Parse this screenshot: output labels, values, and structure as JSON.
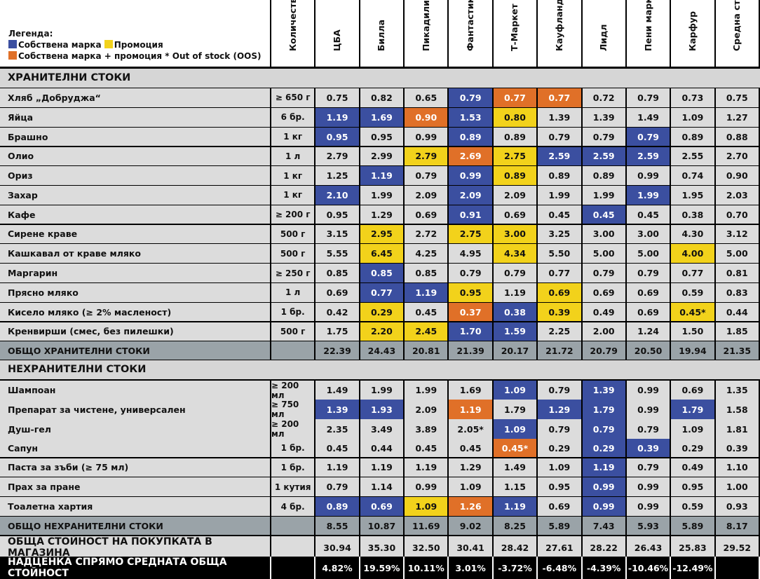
{
  "legend": {
    "title": "Легенда:",
    "own_brand": "Собствена марка",
    "promotion": "Промоция",
    "own_brand_promotion": "Собствена марка + промоция * Out of stock (OOS)",
    "colors": {
      "own_brand": "#3b4fa0",
      "promotion": "#f2d21b",
      "own_brand_promotion": "#e07028"
    }
  },
  "columns": [
    "Количество",
    "ЦБА",
    "Билла",
    "Пикадили",
    "Фантастико",
    "Т-Маркет",
    "Кауфланд",
    "Лидл",
    "Пени маркет",
    "Карфур",
    "Средна стойност"
  ],
  "food": {
    "title": "ХРАНИТЕЛНИ СТОКИ",
    "rows": [
      {
        "name": "Хляб „Добруджа“",
        "qty": "≥ 650 г",
        "vals": [
          "0.75",
          "0.82",
          "0.65",
          "0.79",
          "0.77",
          "0.77",
          "0.72",
          "0.79",
          "0.73",
          "0.75"
        ],
        "marks": [
          "",
          "",
          "",
          "b",
          "o",
          "o",
          "",
          "",
          "",
          ""
        ]
      },
      {
        "name": "Яйца",
        "qty": "6 бр.",
        "vals": [
          "1.19",
          "1.69",
          "0.90",
          "1.53",
          "0.80",
          "1.39",
          "1.39",
          "1.49",
          "1.09",
          "1.27"
        ],
        "marks": [
          "b",
          "b",
          "o",
          "b",
          "y",
          "",
          "",
          "",
          "",
          ""
        ]
      },
      {
        "name": "Брашно",
        "qty": "1 кг",
        "vals": [
          "0.95",
          "0.95",
          "0.99",
          "0.89",
          "0.89",
          "0.79",
          "0.79",
          "0.79",
          "0.89",
          "0.88"
        ],
        "marks": [
          "b",
          "",
          "",
          "b",
          "",
          "",
          "",
          "b",
          "",
          ""
        ]
      },
      {
        "name": "Олио",
        "qty": "1 л",
        "vals": [
          "2.79",
          "2.99",
          "2.79",
          "2.69",
          "2.75",
          "2.59",
          "2.59",
          "2.59",
          "2.55",
          "2.70"
        ],
        "marks": [
          "",
          "",
          "y",
          "o",
          "y",
          "b",
          "b",
          "b",
          "",
          ""
        ]
      },
      {
        "name": "Ориз",
        "qty": "1 кг",
        "vals": [
          "1.25",
          "1.19",
          "0.79",
          "0.99",
          "0.89",
          "0.89",
          "0.89",
          "0.99",
          "0.74",
          "0.90"
        ],
        "marks": [
          "",
          "b",
          "",
          "b",
          "y",
          "",
          "",
          "",
          "",
          ""
        ]
      },
      {
        "name": "Захар",
        "qty": "1 кг",
        "vals": [
          "2.10",
          "1.99",
          "2.09",
          "2.09",
          "2.09",
          "1.99",
          "1.99",
          "1.99",
          "1.95",
          "2.03"
        ],
        "marks": [
          "b",
          "",
          "",
          "b",
          "",
          "",
          "",
          "b",
          "",
          ""
        ]
      },
      {
        "name": "Кафе",
        "qty": "≥ 200 г",
        "vals": [
          "0.95",
          "1.29",
          "0.69",
          "0.91",
          "0.69",
          "0.45",
          "0.45",
          "0.45",
          "0.38",
          "0.70"
        ],
        "marks": [
          "",
          "",
          "",
          "b",
          "",
          "",
          "b",
          "",
          "",
          ""
        ]
      },
      {
        "name": "Сирене краве",
        "qty": "500 г",
        "vals": [
          "3.15",
          "2.95",
          "2.72",
          "2.75",
          "3.00",
          "3.25",
          "3.00",
          "3.00",
          "4.30",
          "3.12"
        ],
        "marks": [
          "",
          "y",
          "",
          "y",
          "y",
          "",
          "",
          "",
          "",
          ""
        ]
      },
      {
        "name": "Кашкавал от краве мляко",
        "qty": "500 г",
        "vals": [
          "5.55",
          "6.45",
          "4.25",
          "4.95",
          "4.34",
          "5.50",
          "5.00",
          "5.00",
          "4.00",
          "5.00"
        ],
        "marks": [
          "",
          "y",
          "",
          "",
          "y",
          "",
          "",
          "",
          "y",
          ""
        ]
      },
      {
        "name": "Маргарин",
        "qty": "≥ 250 г",
        "vals": [
          "0.85",
          "0.85",
          "0.85",
          "0.79",
          "0.79",
          "0.77",
          "0.79",
          "0.79",
          "0.77",
          "0.81"
        ],
        "marks": [
          "",
          "b",
          "",
          "",
          "",
          "",
          "",
          "",
          "",
          ""
        ]
      },
      {
        "name": "Прясно мляко",
        "qty": "1 л",
        "vals": [
          "0.69",
          "0.77",
          "1.19",
          "0.95",
          "1.19",
          "0.69",
          "0.69",
          "0.69",
          "0.59",
          "0.83"
        ],
        "marks": [
          "",
          "b",
          "b",
          "y",
          "",
          "y",
          "",
          "",
          "",
          ""
        ]
      },
      {
        "name": "Кисело мляко (≥ 2% масленост)",
        "qty": "1 бр.",
        "vals": [
          "0.42",
          "0.29",
          "0.45",
          "0.37",
          "0.38",
          "0.39",
          "0.49",
          "0.69",
          "0.45*",
          "0.44"
        ],
        "marks": [
          "",
          "y",
          "",
          "o",
          "b",
          "y",
          "",
          "",
          "y",
          ""
        ]
      },
      {
        "name": "Кренвирши (смес, без пилешки)",
        "qty": "500 г",
        "vals": [
          "1.75",
          "2.20",
          "2.45",
          "1.70",
          "1.59",
          "2.25",
          "2.00",
          "1.24",
          "1.50",
          "1.85"
        ],
        "marks": [
          "",
          "y",
          "y",
          "b",
          "b",
          "",
          "",
          "",
          "",
          ""
        ]
      }
    ],
    "total_label": "ОБЩО ХРАНИТЕЛНИ СТОКИ",
    "totals": [
      "22.39",
      "24.43",
      "20.81",
      "21.39",
      "20.17",
      "21.72",
      "20.79",
      "20.50",
      "19.94",
      "21.35"
    ]
  },
  "nonfood": {
    "title": "НЕХРАНИТЕЛНИ СТОКИ",
    "rows": [
      {
        "name": "Шампоан",
        "qty": "≥ 200 мл",
        "vals": [
          "1.49",
          "1.99",
          "1.99",
          "1.69",
          "1.09",
          "0.79",
          "1.39",
          "0.99",
          "0.69",
          "1.35"
        ],
        "marks": [
          "",
          "",
          "",
          "",
          "b",
          "",
          "b",
          "",
          "",
          ""
        ]
      },
      {
        "name": "Препарат за чистене, универсален",
        "qty": "≥ 750 мл",
        "vals": [
          "1.39",
          "1.93",
          "2.09",
          "1.19",
          "1.79",
          "1.29",
          "1.79",
          "0.99",
          "1.79",
          "1.58"
        ],
        "marks": [
          "b",
          "b",
          "",
          "o",
          "",
          "b",
          "b",
          "",
          "b",
          ""
        ]
      },
      {
        "name": "Душ-гел",
        "qty": "≥ 200 мл",
        "vals": [
          "2.35",
          "3.49",
          "3.89",
          "2.05*",
          "1.09",
          "0.79",
          "0.79",
          "0.79",
          "1.09",
          "1.81"
        ],
        "marks": [
          "",
          "",
          "",
          "",
          "b",
          "",
          "b",
          "",
          "",
          ""
        ]
      },
      {
        "name": "Сапун",
        "qty": "1 бр.",
        "vals": [
          "0.45",
          "0.44",
          "0.45",
          "0.45",
          "0.45*",
          "0.29",
          "0.29",
          "0.39",
          "0.29",
          "0.39"
        ],
        "marks": [
          "",
          "",
          "",
          "",
          "o",
          "",
          "b",
          "b",
          "",
          ""
        ]
      },
      {
        "name": "Паста за зъби (≥ 75 мл)",
        "qty": "1 бр.",
        "vals": [
          "1.19",
          "1.19",
          "1.19",
          "1.29",
          "1.49",
          "1.09",
          "1.19",
          "0.79",
          "0.49",
          "1.10"
        ],
        "marks": [
          "",
          "",
          "",
          "",
          "",
          "",
          "b",
          "",
          "",
          ""
        ]
      },
      {
        "name": "Прах за пране",
        "qty": "1 кутия",
        "vals": [
          "0.79",
          "1.14",
          "0.99",
          "1.09",
          "1.15",
          "0.95",
          "0.99",
          "0.99",
          "0.95",
          "1.00"
        ],
        "marks": [
          "",
          "",
          "",
          "",
          "",
          "",
          "b",
          "",
          "",
          ""
        ]
      },
      {
        "name": "Тоалетна хартия",
        "qty": "4 бр.",
        "vals": [
          "0.89",
          "0.69",
          "1.09",
          "1.26",
          "1.19",
          "0.69",
          "0.99",
          "0.99",
          "0.59",
          "0.93"
        ],
        "marks": [
          "b",
          "b",
          "y",
          "o",
          "b",
          "",
          "b",
          "",
          "",
          ""
        ]
      }
    ],
    "total_label": "ОБЩО НЕХРАНИТЕЛНИ СТОКИ",
    "totals": [
      "8.55",
      "10.87",
      "11.69",
      "9.02",
      "8.25",
      "5.89",
      "7.43",
      "5.93",
      "5.89",
      "8.17"
    ]
  },
  "grand_total": {
    "label": "ОБЩА СТОЙНОСТ НА ПОКУПКАТА В МАГАЗИНА",
    "values": [
      "30.94",
      "35.30",
      "32.50",
      "30.41",
      "28.42",
      "27.61",
      "28.22",
      "26.43",
      "25.83",
      "29.52"
    ]
  },
  "markup": {
    "label": "НАДЦЕНКА СПРЯМО СРЕДНАТА ОБЩА СТОЙНОСТ",
    "values": [
      "4.82%",
      "19.59%",
      "10.11%",
      "3.01%",
      "-3.72%",
      "-6.48%",
      "-4.39%",
      "-10.46%",
      "-12.49%",
      ""
    ]
  }
}
